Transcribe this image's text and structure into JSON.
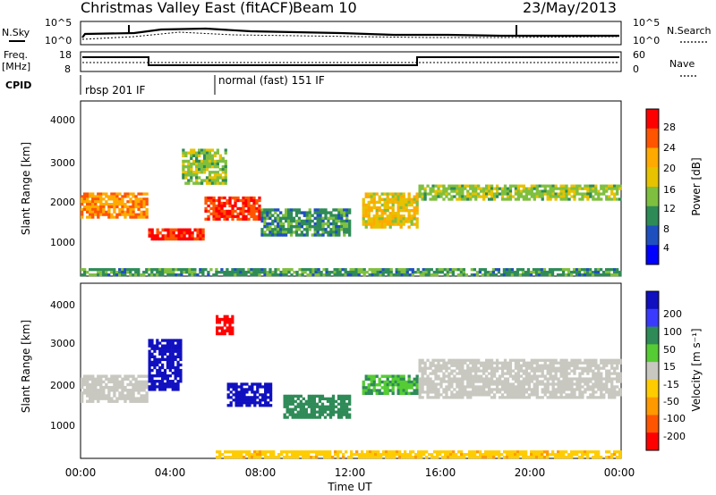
{
  "header": {
    "title": "Christmas Valley East (fitACF)",
    "beam": "Beam 10",
    "date": "23/May/2013"
  },
  "panels": {
    "sky": {
      "left_label": "N.Sky",
      "ticks_left": [
        "10^5",
        "10^0"
      ],
      "ticks_right": [
        "10^5",
        "10^0"
      ],
      "right_label": "N.Search"
    },
    "freq": {
      "left_label_1": "Freq.",
      "left_label_2": "[MHz]",
      "ticks_left": [
        "18",
        "8"
      ],
      "ticks_right": [
        "60",
        "0"
      ],
      "right_label": "Nave"
    },
    "cpid": {
      "label": "CPID",
      "modes": [
        "rbsp 201 IF",
        "normal (fast) 151 IF"
      ]
    }
  },
  "axes": {
    "ylabel": "Slant Range [km]",
    "yticks": [
      "4000",
      "3000",
      "2000",
      "1000"
    ],
    "xlabel": "Time UT",
    "xticks": [
      "00:00",
      "04:00",
      "08:00",
      "12:00",
      "16:00",
      "20:00",
      "00:00"
    ]
  },
  "colorbars": {
    "power": {
      "label": "Power [dB]",
      "ticks": [
        "28",
        "24",
        "20",
        "16",
        "12",
        "8",
        "4"
      ],
      "colors": [
        "#ff0000",
        "#ff5500",
        "#ffaa00",
        "#e6c200",
        "#7fbf3f",
        "#2e8b57",
        "#1f4fbf",
        "#0000ff"
      ]
    },
    "velocity": {
      "label": "Velocity [m s⁻¹]",
      "ticks": [
        "200",
        "100",
        "50",
        "15",
        "-15",
        "-50",
        "-100",
        "-200"
      ],
      "colors": [
        "#1010c0",
        "#3a3aff",
        "#2e8b57",
        "#55cc33",
        "#c8c8c0",
        "#ffcc00",
        "#ff9900",
        "#ff5500",
        "#ff0000"
      ]
    }
  },
  "chart_data": [
    {
      "type": "heatmap",
      "name": "power",
      "xlabel": "Time UT",
      "ylabel": "Slant Range [km]",
      "xlim": [
        0,
        24
      ],
      "ylim": [
        200,
        4600
      ],
      "zlabel": "Power [dB]",
      "zlim": [
        0,
        30
      ],
      "features": [
        {
          "t0": 0.0,
          "t1": 3.0,
          "r0": 1650,
          "r1": 2300,
          "level": 22
        },
        {
          "t0": 3.0,
          "t1": 5.5,
          "r0": 1100,
          "r1": 1400,
          "level": 27
        },
        {
          "t0": 5.5,
          "t1": 8.0,
          "r0": 1600,
          "r1": 2200,
          "level": 26
        },
        {
          "t0": 4.5,
          "t1": 6.5,
          "r0": 2500,
          "r1": 3400,
          "level": 14
        },
        {
          "t0": 8.0,
          "t1": 12.0,
          "r0": 1200,
          "r1": 1900,
          "level": 10
        },
        {
          "t0": 12.5,
          "t1": 15.0,
          "r0": 1400,
          "r1": 2300,
          "level": 18
        },
        {
          "t0": 15.0,
          "t1": 24.0,
          "r0": 2100,
          "r1": 2500,
          "level": 14
        },
        {
          "t0": 0.0,
          "t1": 24.0,
          "r0": 200,
          "r1": 400,
          "level": 10
        }
      ]
    },
    {
      "type": "heatmap",
      "name": "velocity",
      "xlabel": "Time UT",
      "ylabel": "Slant Range [km]",
      "xlim": [
        0,
        24
      ],
      "ylim": [
        200,
        4600
      ],
      "zlabel": "Velocity [m s⁻¹]",
      "zlim": [
        -200,
        200
      ],
      "features": [
        {
          "t0": 0.0,
          "t1": 3.0,
          "r0": 1600,
          "r1": 2300,
          "level": 0
        },
        {
          "t0": 3.0,
          "t1": 4.5,
          "r0": 1900,
          "r1": 3200,
          "level": 200
        },
        {
          "t0": 6.5,
          "t1": 8.5,
          "r0": 1500,
          "r1": 2100,
          "level": 200
        },
        {
          "t0": 6.0,
          "t1": 6.8,
          "r0": 3300,
          "r1": 3800,
          "level": -200
        },
        {
          "t0": 9.0,
          "t1": 12.0,
          "r0": 1200,
          "r1": 1800,
          "level": 60
        },
        {
          "t0": 12.5,
          "t1": 15.0,
          "r0": 1800,
          "r1": 2300,
          "level": 30
        },
        {
          "t0": 15.0,
          "t1": 24.0,
          "r0": 1700,
          "r1": 2700,
          "level": 0
        },
        {
          "t0": 6.0,
          "t1": 24.0,
          "r0": 200,
          "r1": 400,
          "level": -40
        }
      ]
    }
  ]
}
